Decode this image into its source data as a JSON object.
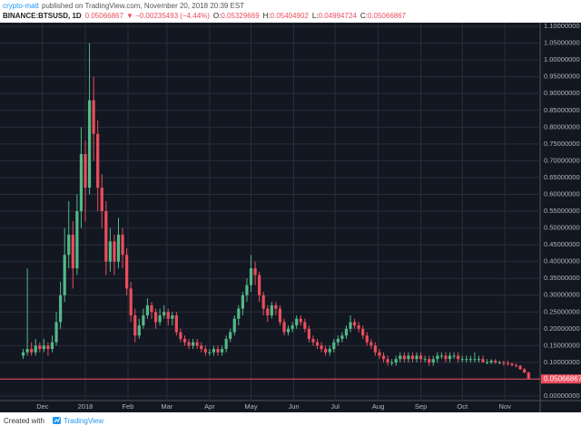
{
  "header": {
    "author": "crypto-matt",
    "published": "published on TradingView.com, November 20, 2018 20:39 EST",
    "symbol": "BINANCE:BTSUSD, 1D",
    "change": "▼ −0.00235493 (−4.44%)",
    "ohlc": [
      {
        "label": "O:",
        "value": "0.05329669"
      },
      {
        "label": "H:",
        "value": "0.05404902"
      },
      {
        "label": "L:",
        "value": "0.04994724"
      },
      {
        "label": "C:",
        "value": "0.05066867"
      }
    ]
  },
  "footer": {
    "created": "Created with",
    "brand": "TradingView"
  },
  "chart_data": {
    "type": "candlestick",
    "last_price": 0.05066867,
    "up_color": "#53b987",
    "down_color": "#eb4d5c",
    "grid": true,
    "xlim": [
      -5.6,
      124.8
    ],
    "ylim": [
      -0.0135,
      1.111
    ],
    "xticks": [
      {
        "value": 4.67,
        "label": "Dec"
      },
      {
        "value": 15,
        "label": "2018"
      },
      {
        "value": 25.3,
        "label": "Feb"
      },
      {
        "value": 34.7,
        "label": "Mar"
      },
      {
        "value": 45,
        "label": "Apr"
      },
      {
        "value": 55,
        "label": "May"
      },
      {
        "value": 65.3,
        "label": "Jun"
      },
      {
        "value": 75.3,
        "label": "Jul"
      },
      {
        "value": 85.7,
        "label": "Aug"
      },
      {
        "value": 96,
        "label": "Sep"
      },
      {
        "value": 106,
        "label": "Oct"
      },
      {
        "value": 116.3,
        "label": "Nov"
      }
    ],
    "yticks": [
      {
        "value": 0,
        "label": "0.00000000"
      },
      {
        "value": 0.05,
        "label": "0.05000000"
      },
      {
        "value": 0.1,
        "label": "0.10000000"
      },
      {
        "value": 0.15,
        "label": "0.15000000"
      },
      {
        "value": 0.2,
        "label": "0.20000000"
      },
      {
        "value": 0.25,
        "label": "0.25000000"
      },
      {
        "value": 0.3,
        "label": "0.30000000"
      },
      {
        "value": 0.35,
        "label": "0.35000000"
      },
      {
        "value": 0.4,
        "label": "0.40000000"
      },
      {
        "value": 0.45,
        "label": "0.45000000"
      },
      {
        "value": 0.5,
        "label": "0.50000000"
      },
      {
        "value": 0.55,
        "label": "0.55000000"
      },
      {
        "value": 0.6,
        "label": "0.60000000"
      },
      {
        "value": 0.65,
        "label": "0.65000000"
      },
      {
        "value": 0.7,
        "label": "0.70000000"
      },
      {
        "value": 0.75,
        "label": "0.75000000"
      },
      {
        "value": 0.8,
        "label": "0.80000000"
      },
      {
        "value": 0.85,
        "label": "0.85000000"
      },
      {
        "value": 0.9,
        "label": "0.90000000"
      },
      {
        "value": 0.95,
        "label": "0.95000000"
      },
      {
        "value": 1,
        "label": "1.00000000"
      },
      {
        "value": 1.05,
        "label": "1.05000000"
      },
      {
        "value": 1.1,
        "label": "1.10000000"
      }
    ],
    "candles": [
      [
        0.12,
        0.14,
        0.11,
        0.13
      ],
      [
        0.13,
        0.38,
        0.12,
        0.14
      ],
      [
        0.14,
        0.16,
        0.12,
        0.13
      ],
      [
        0.13,
        0.17,
        0.12,
        0.15
      ],
      [
        0.15,
        0.16,
        0.13,
        0.14
      ],
      [
        0.14,
        0.17,
        0.13,
        0.15
      ],
      [
        0.15,
        0.16,
        0.12,
        0.14
      ],
      [
        0.14,
        0.18,
        0.13,
        0.16
      ],
      [
        0.16,
        0.25,
        0.15,
        0.22
      ],
      [
        0.22,
        0.34,
        0.2,
        0.3
      ],
      [
        0.3,
        0.5,
        0.28,
        0.42
      ],
      [
        0.42,
        0.58,
        0.38,
        0.48
      ],
      [
        0.48,
        0.52,
        0.32,
        0.38
      ],
      [
        0.38,
        0.6,
        0.36,
        0.55
      ],
      [
        0.55,
        0.8,
        0.5,
        0.72
      ],
      [
        0.72,
        0.76,
        0.52,
        0.62
      ],
      [
        0.62,
        1.05,
        0.6,
        0.88
      ],
      [
        0.88,
        0.95,
        0.7,
        0.78
      ],
      [
        0.78,
        0.82,
        0.55,
        0.62
      ],
      [
        0.62,
        0.66,
        0.5,
        0.55
      ],
      [
        0.55,
        0.58,
        0.36,
        0.4
      ],
      [
        0.4,
        0.5,
        0.37,
        0.46
      ],
      [
        0.46,
        0.48,
        0.36,
        0.4
      ],
      [
        0.4,
        0.53,
        0.38,
        0.48
      ],
      [
        0.48,
        0.5,
        0.38,
        0.42
      ],
      [
        0.42,
        0.44,
        0.3,
        0.32
      ],
      [
        0.32,
        0.34,
        0.22,
        0.24
      ],
      [
        0.24,
        0.26,
        0.16,
        0.18
      ],
      [
        0.18,
        0.23,
        0.17,
        0.21
      ],
      [
        0.21,
        0.26,
        0.2,
        0.24
      ],
      [
        0.24,
        0.29,
        0.23,
        0.27
      ],
      [
        0.27,
        0.28,
        0.23,
        0.25
      ],
      [
        0.25,
        0.26,
        0.2,
        0.22
      ],
      [
        0.22,
        0.26,
        0.21,
        0.24
      ],
      [
        0.24,
        0.27,
        0.23,
        0.25
      ],
      [
        0.25,
        0.26,
        0.21,
        0.23
      ],
      [
        0.23,
        0.25,
        0.21,
        0.24
      ],
      [
        0.24,
        0.25,
        0.18,
        0.19
      ],
      [
        0.19,
        0.2,
        0.16,
        0.17
      ],
      [
        0.17,
        0.18,
        0.15,
        0.16
      ],
      [
        0.16,
        0.17,
        0.14,
        0.15
      ],
      [
        0.15,
        0.17,
        0.14,
        0.16
      ],
      [
        0.16,
        0.17,
        0.14,
        0.15
      ],
      [
        0.15,
        0.16,
        0.13,
        0.14
      ],
      [
        0.14,
        0.15,
        0.12,
        0.13
      ],
      [
        0.13,
        0.14,
        0.12,
        0.13
      ],
      [
        0.13,
        0.15,
        0.12,
        0.14
      ],
      [
        0.14,
        0.15,
        0.12,
        0.13
      ],
      [
        0.13,
        0.15,
        0.12,
        0.14
      ],
      [
        0.14,
        0.18,
        0.13,
        0.17
      ],
      [
        0.17,
        0.2,
        0.16,
        0.19
      ],
      [
        0.19,
        0.24,
        0.18,
        0.23
      ],
      [
        0.23,
        0.27,
        0.21,
        0.26
      ],
      [
        0.26,
        0.31,
        0.24,
        0.3
      ],
      [
        0.3,
        0.35,
        0.28,
        0.33
      ],
      [
        0.33,
        0.42,
        0.31,
        0.38
      ],
      [
        0.38,
        0.4,
        0.33,
        0.36
      ],
      [
        0.36,
        0.37,
        0.28,
        0.3
      ],
      [
        0.3,
        0.31,
        0.24,
        0.26
      ],
      [
        0.26,
        0.27,
        0.22,
        0.24
      ],
      [
        0.24,
        0.28,
        0.23,
        0.27
      ],
      [
        0.27,
        0.28,
        0.24,
        0.26
      ],
      [
        0.26,
        0.27,
        0.21,
        0.22
      ],
      [
        0.22,
        0.23,
        0.18,
        0.19
      ],
      [
        0.19,
        0.21,
        0.18,
        0.2
      ],
      [
        0.2,
        0.22,
        0.19,
        0.21
      ],
      [
        0.21,
        0.24,
        0.2,
        0.23
      ],
      [
        0.23,
        0.24,
        0.21,
        0.22
      ],
      [
        0.22,
        0.23,
        0.19,
        0.2
      ],
      [
        0.2,
        0.21,
        0.16,
        0.17
      ],
      [
        0.17,
        0.18,
        0.15,
        0.16
      ],
      [
        0.16,
        0.17,
        0.14,
        0.15
      ],
      [
        0.15,
        0.16,
        0.13,
        0.14
      ],
      [
        0.14,
        0.15,
        0.12,
        0.13
      ],
      [
        0.13,
        0.15,
        0.12,
        0.14
      ],
      [
        0.14,
        0.17,
        0.13,
        0.16
      ],
      [
        0.16,
        0.18,
        0.15,
        0.17
      ],
      [
        0.17,
        0.19,
        0.16,
        0.18
      ],
      [
        0.18,
        0.21,
        0.17,
        0.2
      ],
      [
        0.2,
        0.24,
        0.19,
        0.22
      ],
      [
        0.22,
        0.23,
        0.2,
        0.21
      ],
      [
        0.21,
        0.22,
        0.19,
        0.2
      ],
      [
        0.2,
        0.21,
        0.17,
        0.18
      ],
      [
        0.18,
        0.19,
        0.15,
        0.16
      ],
      [
        0.16,
        0.17,
        0.14,
        0.15
      ],
      [
        0.15,
        0.16,
        0.12,
        0.13
      ],
      [
        0.13,
        0.14,
        0.11,
        0.12
      ],
      [
        0.12,
        0.13,
        0.1,
        0.11
      ],
      [
        0.11,
        0.12,
        0.09,
        0.1
      ],
      [
        0.1,
        0.11,
        0.09,
        0.1
      ],
      [
        0.1,
        0.12,
        0.09,
        0.11
      ],
      [
        0.11,
        0.13,
        0.1,
        0.12
      ],
      [
        0.12,
        0.13,
        0.1,
        0.11
      ],
      [
        0.11,
        0.13,
        0.1,
        0.12
      ],
      [
        0.12,
        0.13,
        0.1,
        0.11
      ],
      [
        0.11,
        0.13,
        0.1,
        0.12
      ],
      [
        0.12,
        0.13,
        0.1,
        0.11
      ],
      [
        0.11,
        0.12,
        0.1,
        0.11
      ],
      [
        0.11,
        0.12,
        0.09,
        0.1
      ],
      [
        0.1,
        0.12,
        0.09,
        0.11
      ],
      [
        0.11,
        0.13,
        0.1,
        0.12
      ],
      [
        0.12,
        0.13,
        0.11,
        0.12
      ],
      [
        0.12,
        0.13,
        0.1,
        0.11
      ],
      [
        0.11,
        0.13,
        0.1,
        0.12
      ],
      [
        0.12,
        0.13,
        0.11,
        0.12
      ],
      [
        0.12,
        0.13,
        0.1,
        0.11
      ],
      [
        0.11,
        0.12,
        0.1,
        0.11
      ],
      [
        0.11,
        0.12,
        0.1,
        0.11
      ],
      [
        0.11,
        0.12,
        0.1,
        0.11
      ],
      [
        0.11,
        0.13,
        0.1,
        0.11
      ],
      [
        0.11,
        0.12,
        0.1,
        0.11
      ],
      [
        0.11,
        0.12,
        0.1,
        0.1
      ],
      [
        0.1,
        0.11,
        0.095,
        0.1
      ],
      [
        0.1,
        0.11,
        0.095,
        0.105
      ],
      [
        0.105,
        0.11,
        0.095,
        0.1
      ],
      [
        0.1,
        0.105,
        0.095,
        0.1
      ],
      [
        0.1,
        0.105,
        0.09,
        0.098
      ],
      [
        0.098,
        0.105,
        0.09,
        0.096
      ],
      [
        0.096,
        0.1,
        0.088,
        0.092
      ],
      [
        0.092,
        0.097,
        0.085,
        0.09
      ],
      [
        0.09,
        0.092,
        0.078,
        0.08
      ],
      [
        0.08,
        0.083,
        0.068,
        0.07
      ],
      [
        0.07,
        0.072,
        0.049,
        0.05066867
      ]
    ]
  }
}
